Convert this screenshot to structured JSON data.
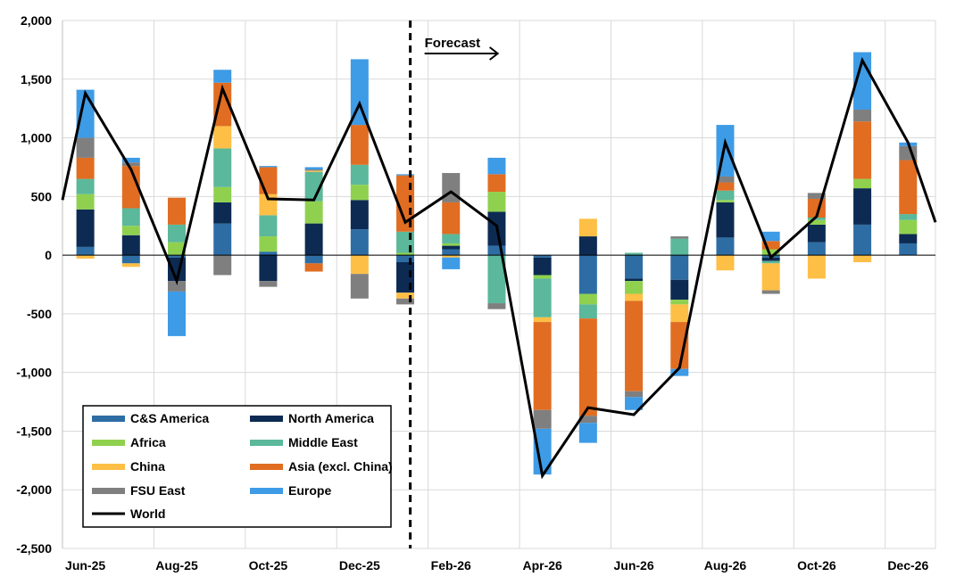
{
  "chart_data": {
    "type": "bar",
    "subtype": "stacked-bar-with-line",
    "title": "",
    "xlabel": "",
    "ylabel": "",
    "ylim": [
      -2500,
      2000
    ],
    "yticks": [
      2000,
      1500,
      1000,
      500,
      0,
      -500,
      -1000,
      -1500,
      -2000,
      -2500
    ],
    "ytick_labels": [
      "2,000",
      "1,500",
      "1,000",
      "500",
      "0",
      "-500",
      "-1,000",
      "-1,500",
      "-2,000",
      "-2,500"
    ],
    "categories": [
      "Jun-25",
      "Jul-25",
      "Aug-25",
      "Sep-25",
      "Oct-25",
      "Nov-25",
      "Dec-25",
      "Jan-26",
      "Feb-26",
      "Mar-26",
      "Apr-26",
      "May-26",
      "Jun-26",
      "Jul-26",
      "Aug-26",
      "Sep-26",
      "Oct-26",
      "Nov-26",
      "Dec-26"
    ],
    "xtick_labels": [
      "Jun-25",
      "",
      "Aug-25",
      "",
      "Oct-25",
      "",
      "Dec-25",
      "",
      "Feb-26",
      "",
      "Apr-26",
      "",
      "Jun-26",
      "",
      "Aug-26",
      "",
      "Oct-26",
      "",
      "Dec-26"
    ],
    "series": [
      {
        "name": "C&S America",
        "color": "#2e6da4",
        "values": [
          70,
          -70,
          -20,
          270,
          30,
          -70,
          220,
          -60,
          50,
          80,
          -20,
          -330,
          -200,
          -210,
          150,
          -20,
          110,
          260,
          100
        ]
      },
      {
        "name": "North America",
        "color": "#0d2b52",
        "values": [
          320,
          170,
          -200,
          180,
          -220,
          270,
          250,
          -260,
          30,
          290,
          -150,
          160,
          -20,
          -170,
          300,
          -30,
          150,
          310,
          80
        ]
      },
      {
        "name": "Africa",
        "color": "#8fd14f",
        "values": [
          130,
          80,
          110,
          130,
          130,
          190,
          130,
          20,
          20,
          170,
          -30,
          -90,
          -110,
          -40,
          20,
          50,
          40,
          80,
          120
        ]
      },
      {
        "name": "Middle East",
        "color": "#5bb89a",
        "values": [
          130,
          150,
          150,
          330,
          180,
          250,
          170,
          180,
          80,
          -410,
          -330,
          -120,
          20,
          140,
          80,
          -20,
          20,
          0,
          50
        ]
      },
      {
        "name": "China",
        "color": "#fdbf45",
        "values": [
          -30,
          -30,
          0,
          190,
          180,
          10,
          -160,
          -50,
          -20,
          0,
          -40,
          150,
          -60,
          -150,
          -130,
          -230,
          -200,
          -60,
          0
        ]
      },
      {
        "name": "Asia (excl. China)",
        "color": "#e06d22",
        "values": [
          180,
          360,
          230,
          370,
          230,
          -70,
          340,
          480,
          270,
          150,
          -750,
          -830,
          -770,
          -400,
          70,
          70,
          160,
          490,
          460
        ]
      },
      {
        "name": "FSU East",
        "color": "#7f7f7f",
        "values": [
          170,
          30,
          -90,
          -170,
          -50,
          10,
          -210,
          -50,
          250,
          -50,
          -160,
          -60,
          -50,
          20,
          50,
          -30,
          50,
          100,
          120
        ]
      },
      {
        "name": "Europe",
        "color": "#3e9be6",
        "values": [
          410,
          40,
          -380,
          110,
          10,
          20,
          560,
          10,
          -100,
          140,
          -390,
          -170,
          -110,
          -60,
          440,
          80,
          0,
          490,
          30
        ]
      }
    ],
    "line": {
      "name": "World",
      "color": "#000000",
      "values": [
        1380,
        730,
        -220,
        1420,
        480,
        470,
        1290,
        280,
        540,
        250,
        -1880,
        -1300,
        -1360,
        -960,
        960,
        -20,
        330,
        1660,
        960
      ]
    },
    "line_edges": {
      "start": 470,
      "end": 280
    },
    "annotation": {
      "label": "Forecast",
      "divider_after_index": 7
    },
    "legend": {
      "position": "bottom-left",
      "columns": 2
    },
    "grid": true
  }
}
